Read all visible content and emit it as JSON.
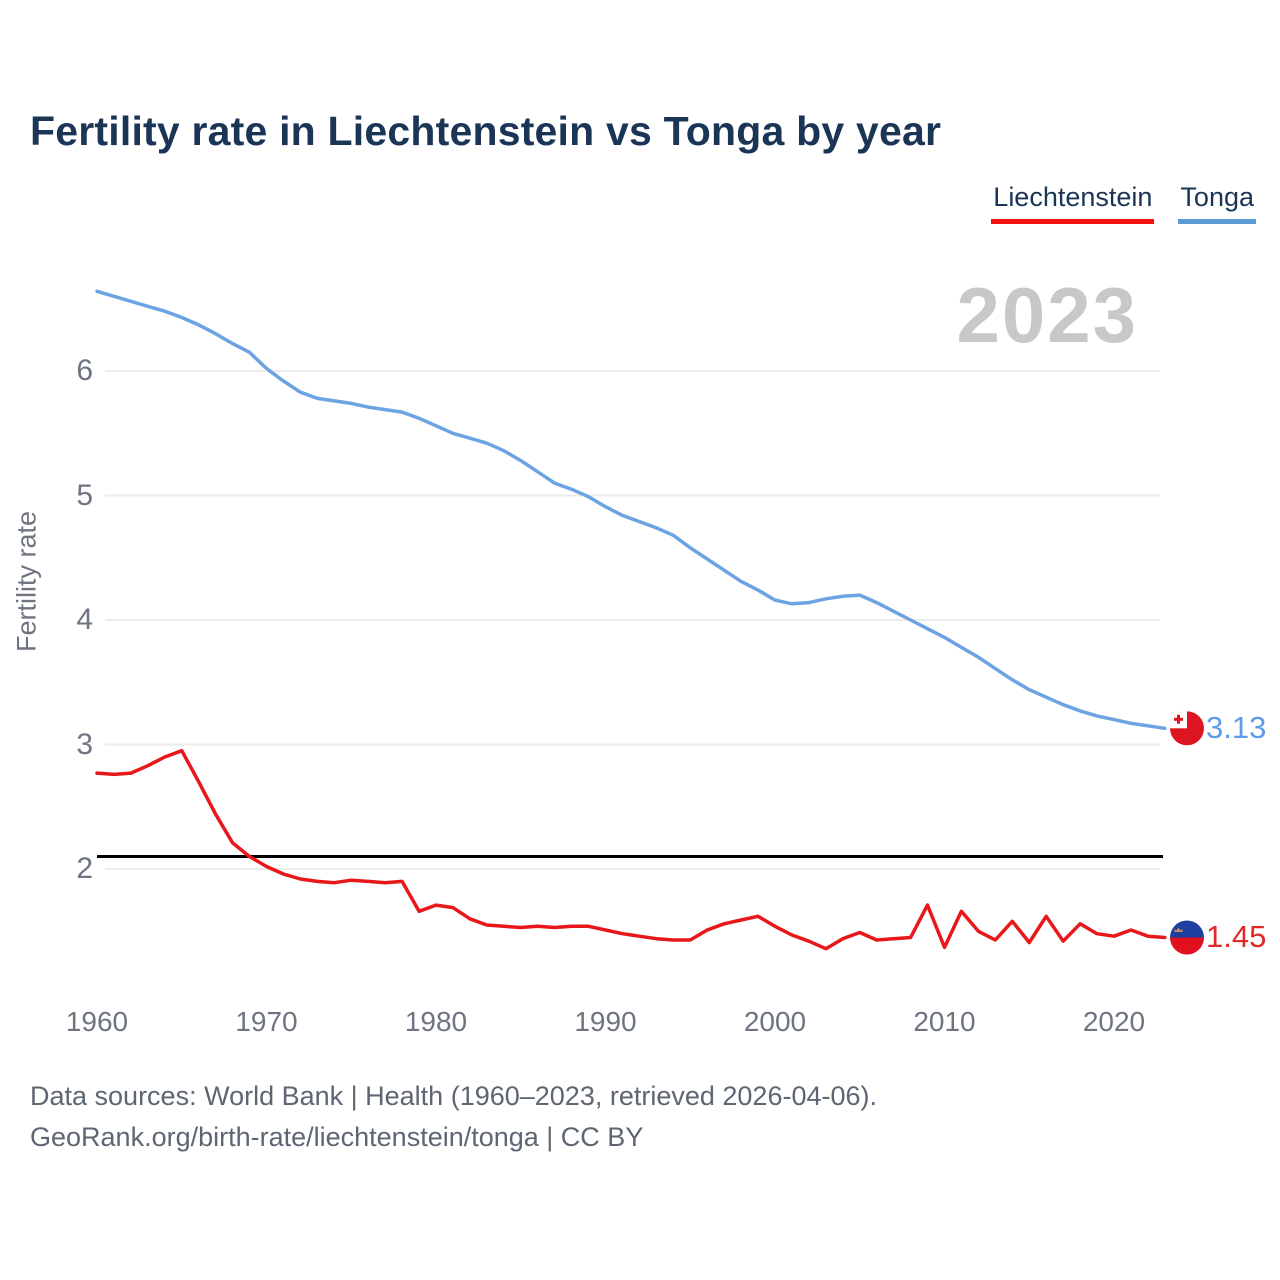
{
  "header": {
    "title": "Fertility rate in Liechtenstein vs Tonga by year"
  },
  "legend": {
    "items": [
      {
        "label": "Liechtenstein",
        "color": "#f21212"
      },
      {
        "label": "Tonga",
        "color": "#5b9bd5"
      }
    ]
  },
  "watermark": "2023",
  "axes": {
    "y_label": "Fertility rate",
    "y_ticks": [
      "6",
      "5",
      "4",
      "3",
      "2"
    ],
    "x_ticks": [
      "1960",
      "1970",
      "1980",
      "1990",
      "2000",
      "2010",
      "2020"
    ]
  },
  "end_labels": {
    "tonga": {
      "text": "3.13",
      "value": 3.13,
      "color": "#5b9ee6"
    },
    "liechtenstein": {
      "text": "1.45",
      "value": 1.45,
      "color": "#e02828"
    }
  },
  "footer": {
    "line1": "Data sources: World Bank | Health (1960–2023, retrieved 2026-04-06).",
    "line2": "GeoRank.org/birth-rate/liechtenstein/tonga | CC BY"
  },
  "chart_data": {
    "type": "line",
    "title": "Fertility rate in Liechtenstein vs Tonga by year",
    "xlabel": "",
    "ylabel": "Fertility rate",
    "x_range": [
      1960,
      2023
    ],
    "ylim": [
      1.1,
      6.9
    ],
    "y_tick_values": [
      6,
      5,
      4,
      3,
      2
    ],
    "x_tick_values": [
      1960,
      1970,
      1980,
      1990,
      2000,
      2010,
      2020
    ],
    "grid": true,
    "legend_position": "top-right",
    "reference_line": {
      "value": 2.1,
      "color": "#000000"
    },
    "x": [
      1960,
      1961,
      1962,
      1963,
      1964,
      1965,
      1966,
      1967,
      1968,
      1969,
      1970,
      1971,
      1972,
      1973,
      1974,
      1975,
      1976,
      1977,
      1978,
      1979,
      1980,
      1981,
      1982,
      1983,
      1984,
      1985,
      1986,
      1987,
      1988,
      1989,
      1990,
      1991,
      1992,
      1993,
      1994,
      1995,
      1996,
      1997,
      1998,
      1999,
      2000,
      2001,
      2002,
      2003,
      2004,
      2005,
      2006,
      2007,
      2008,
      2009,
      2010,
      2011,
      2012,
      2013,
      2014,
      2015,
      2016,
      2017,
      2018,
      2019,
      2020,
      2021,
      2022,
      2023
    ],
    "series": [
      {
        "name": "Liechtenstein",
        "color": "#e8171a",
        "values": [
          2.77,
          2.76,
          2.77,
          2.83,
          2.9,
          2.95,
          2.7,
          2.44,
          2.21,
          2.1,
          2.02,
          1.96,
          1.92,
          1.9,
          1.89,
          1.91,
          1.9,
          1.89,
          1.9,
          1.66,
          1.71,
          1.69,
          1.6,
          1.55,
          1.54,
          1.53,
          1.54,
          1.53,
          1.54,
          1.54,
          1.51,
          1.48,
          1.46,
          1.44,
          1.43,
          1.43,
          1.51,
          1.56,
          1.59,
          1.62,
          1.54,
          1.47,
          1.42,
          1.36,
          1.44,
          1.49,
          1.43,
          1.44,
          1.45,
          1.71,
          1.37,
          1.66,
          1.5,
          1.43,
          1.58,
          1.41,
          1.62,
          1.42,
          1.56,
          1.48,
          1.46,
          1.51,
          1.46,
          1.45
        ]
      },
      {
        "name": "Tonga",
        "color": "#6ba3e3",
        "values": [
          6.64,
          6.6,
          6.56,
          6.52,
          6.48,
          6.43,
          6.37,
          6.3,
          6.22,
          6.15,
          6.02,
          5.92,
          5.83,
          5.78,
          5.76,
          5.74,
          5.71,
          5.69,
          5.67,
          5.62,
          5.56,
          5.5,
          5.46,
          5.42,
          5.36,
          5.28,
          5.19,
          5.1,
          5.05,
          4.99,
          4.91,
          4.84,
          4.79,
          4.74,
          4.68,
          4.58,
          4.49,
          4.4,
          4.31,
          4.24,
          4.16,
          4.13,
          4.14,
          4.17,
          4.19,
          4.2,
          4.14,
          4.07,
          4.0,
          3.93,
          3.86,
          3.78,
          3.7,
          3.61,
          3.52,
          3.44,
          3.38,
          3.32,
          3.27,
          3.23,
          3.2,
          3.17,
          3.15,
          3.13
        ]
      }
    ]
  }
}
